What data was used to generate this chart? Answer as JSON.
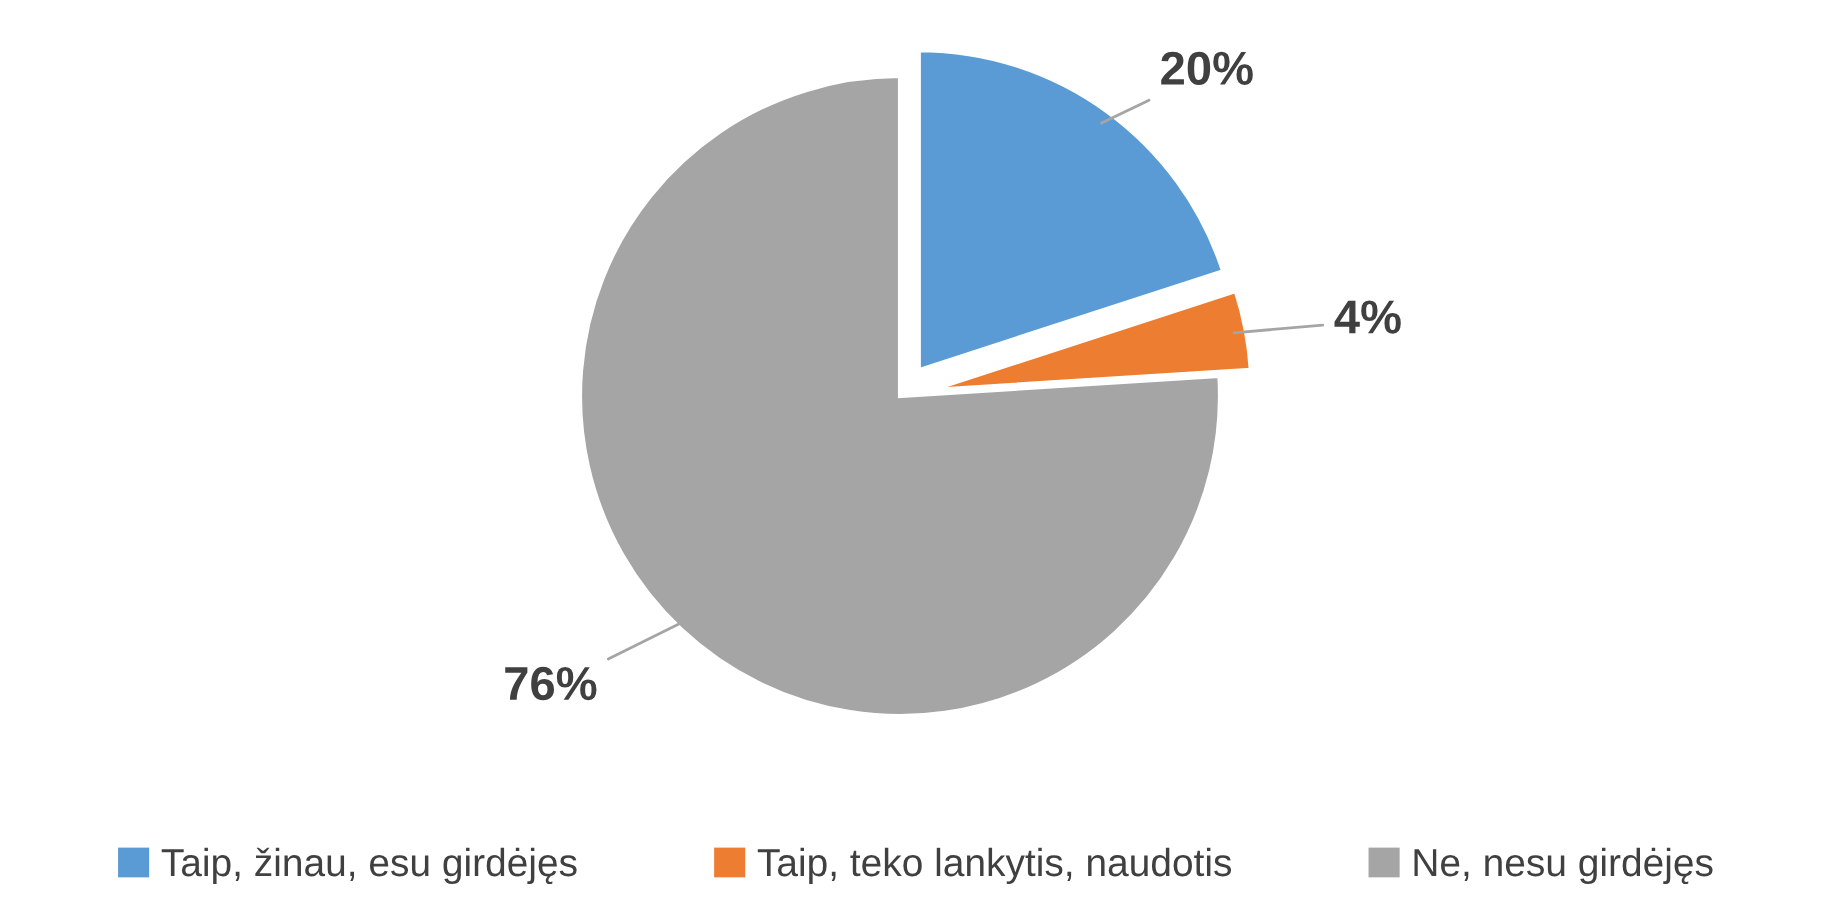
{
  "chart_data": {
    "type": "pie",
    "categories": [
      "Taip, žinau, esu girdėjęs",
      "Taip, teko lankytis, naudotis",
      "Ne, nesu girdėjęs"
    ],
    "values": [
      20,
      4,
      76
    ],
    "colors": [
      "#5b9bd5",
      "#ed7d31",
      "#a5a5a5"
    ],
    "value_labels": [
      "20%",
      "4%",
      "76%"
    ],
    "legend": "bottom"
  }
}
